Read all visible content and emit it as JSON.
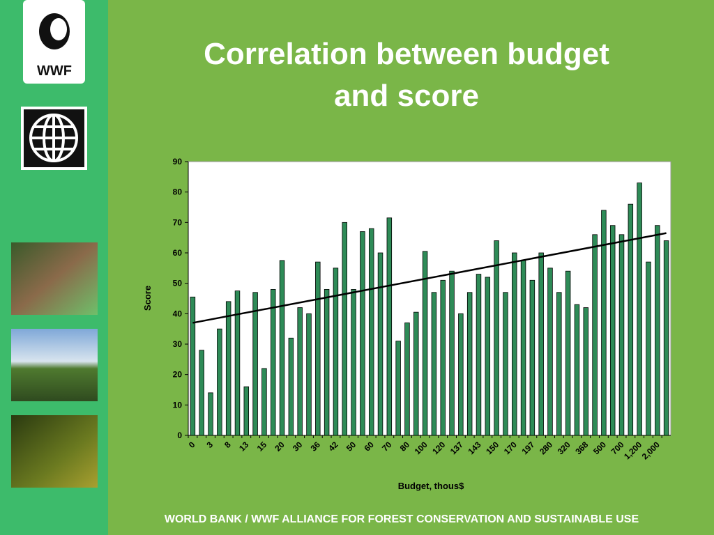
{
  "logo_text": "WWF",
  "footer": "WORLD BANK / WWF ALLIANCE FOR FOREST CONSERVATION AND SUSTAINABLE USE",
  "chart_data": {
    "type": "bar",
    "title": "Correlation between budget and score",
    "x_label": "Budget, thous$",
    "y_label": "Score",
    "categories": [
      "0",
      null,
      "3",
      null,
      "8",
      null,
      "13",
      null,
      "15",
      null,
      "20",
      null,
      "30",
      null,
      "36",
      null,
      "42",
      null,
      "50",
      null,
      "60",
      null,
      "70",
      null,
      "80",
      null,
      "100",
      null,
      "120",
      null,
      "137",
      null,
      "143",
      null,
      "150",
      null,
      "170",
      null,
      "197",
      null,
      "280",
      null,
      "320",
      null,
      "368",
      null,
      "500",
      null,
      "700",
      null,
      "1,200",
      null,
      "2,000",
      null
    ],
    "values": [
      45.5,
      28,
      14,
      35,
      44,
      47.5,
      16,
      47,
      22,
      48,
      57.5,
      32,
      42,
      40,
      57,
      48,
      55,
      70,
      48,
      67,
      68,
      60,
      71.5,
      31,
      37,
      40.5,
      60.5,
      47,
      51,
      54,
      40,
      47,
      53,
      52,
      64,
      47,
      60,
      57.5,
      51,
      60,
      55,
      47,
      54,
      43,
      42,
      66,
      74,
      69,
      66,
      76,
      83,
      57,
      69,
      64
    ],
    "color": "#2e8b57",
    "trend": [
      37,
      66.5
    ],
    "ylim": [
      0,
      90
    ],
    "yticks": [
      0,
      10,
      20,
      30,
      40,
      50,
      60,
      70,
      80,
      90
    ]
  }
}
